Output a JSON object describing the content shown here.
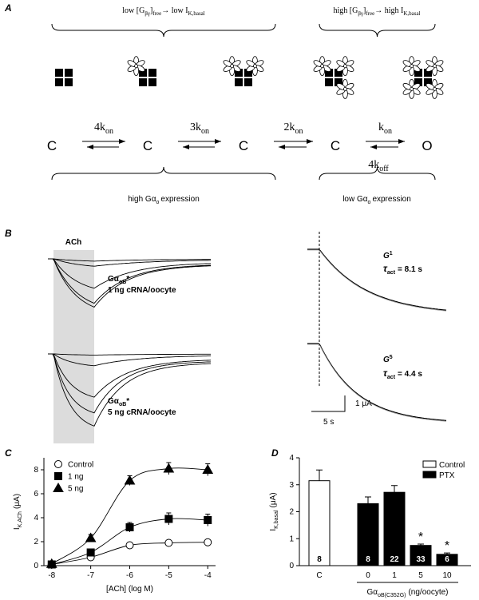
{
  "panel_a": {
    "label": "A",
    "low_header": {
      "p1": "low [G",
      "s1": "βγ",
      "p2": "]",
      "s2": "free",
      "p3": "→ low I",
      "s3": "K,basal"
    },
    "high_header": {
      "p1": "high [G",
      "s1": "βγ",
      "p2": "]",
      "s2": "free",
      "p3": "→ high I",
      "s3": "K,basal"
    },
    "states": [
      "C",
      "C",
      "C",
      "C",
      "O"
    ],
    "forward_rates": [
      {
        "k": "4k",
        "sub": "on"
      },
      {
        "k": "3k",
        "sub": "on"
      },
      {
        "k": "2k",
        "sub": "on"
      },
      {
        "k": "k",
        "sub": "on"
      }
    ],
    "backward_rate": {
      "k": "4k",
      "sub": "off"
    },
    "high_expression": {
      "pre": "high Gα",
      "sub": "o",
      "post": "expression"
    },
    "low_expression": {
      "pre": "low Gα",
      "sub": "o",
      "post": "expression"
    }
  },
  "panel_b": {
    "label": "B",
    "stimulus": "ACh",
    "top_condition": {
      "pre": "Gα",
      "sub": "oB",
      "post": "*",
      "dose": "1 ng cRNA/oocyte"
    },
    "bottom_condition": {
      "pre": "Gα",
      "sub": "oB",
      "post": "*",
      "dose": "5 ng cRNA/oocyte"
    },
    "fits": [
      {
        "g": "G",
        "sup": "1",
        "tau": "τ",
        "tau_sub": "act",
        "value": "= 8.1 s"
      },
      {
        "g": "G",
        "sup": "5",
        "tau": "τ",
        "tau_sub": "act",
        "value": "= 4.4 s"
      }
    ],
    "scale_y": "1 μA",
    "scale_x": "5 s"
  },
  "chart_data": [
    {
      "type": "line",
      "panel": "C",
      "x_label": "[ACh] (log M)",
      "y_label": {
        "main": "I",
        "sub": "K,ACh",
        "unit": "(μA)"
      },
      "x": [
        -8,
        -7,
        -6,
        -5,
        -4
      ],
      "xlim": [
        -8.2,
        -3.8
      ],
      "xticks": [
        -8,
        -7,
        -6,
        -5,
        -4
      ],
      "ylim": [
        0,
        9
      ],
      "yticks": [
        0,
        2,
        4,
        6,
        8
      ],
      "legend": "upper left",
      "series": [
        {
          "name": "Control",
          "marker": "circle",
          "color": "#ffffff",
          "values": [
            0.1,
            0.7,
            1.7,
            1.9,
            1.95
          ],
          "errors": [
            0.05,
            0.1,
            0.15,
            0.15,
            0.1
          ]
        },
        {
          "name": "1 ng",
          "marker": "square",
          "color": "#000000",
          "values": [
            0.1,
            1.1,
            3.2,
            3.9,
            3.8
          ],
          "errors": [
            0.1,
            0.3,
            0.4,
            0.5,
            0.5
          ]
        },
        {
          "name": "5 ng",
          "marker": "triangle",
          "color": "#000000",
          "values": [
            0.15,
            2.3,
            7.1,
            8.1,
            8.0
          ],
          "errors": [
            0.1,
            0.3,
            0.4,
            0.5,
            0.5
          ]
        }
      ]
    },
    {
      "type": "bar",
      "panel": "D",
      "categories": [
        "C",
        "0",
        "1",
        "5",
        "10"
      ],
      "x_label": {
        "main": "Gα",
        "sub": "oB(C352G)",
        "unit": "(ng/oocyte)"
      },
      "y_label": {
        "main": "I",
        "sub": "K,basal",
        "unit": "(μA)"
      },
      "ylim": [
        0,
        4
      ],
      "yticks": [
        0,
        1,
        2,
        3,
        4
      ],
      "legend": "upper right",
      "series": [
        {
          "name": "Control",
          "color": "#ffffff",
          "values": [
            3.15,
            null,
            null,
            null,
            null
          ],
          "errors": [
            0.4,
            null,
            null,
            null,
            null
          ]
        },
        {
          "name": "PTX",
          "color": "#000000",
          "values": [
            null,
            2.3,
            2.72,
            0.75,
            0.42
          ],
          "errors": [
            null,
            0.25,
            0.25,
            0.05,
            0.05
          ]
        }
      ],
      "n_labels": [
        "8",
        "8",
        "22",
        "33",
        "6"
      ],
      "annotations": [
        null,
        null,
        null,
        "*",
        "*"
      ]
    }
  ]
}
